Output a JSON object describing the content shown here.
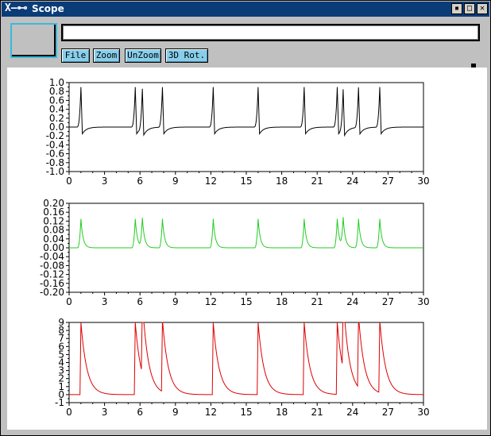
{
  "window": {
    "title": "Scope",
    "logo": "X"
  },
  "toolbar": {
    "file_label": "File",
    "zoom_label": "Zoom",
    "unzoom_label": "UnZoom",
    "rot3d_label": "3D Rot.",
    "text_value": ""
  },
  "chart_data": [
    {
      "type": "line",
      "color": "#000000",
      "xlim": [
        0,
        30
      ],
      "ylim": [
        -1.0,
        1.0
      ],
      "xticks": [
        0,
        3,
        6,
        9,
        12,
        15,
        18,
        21,
        24,
        27,
        30
      ],
      "yticks": [
        "1.0",
        "0.8",
        "0.6",
        "0.4",
        "0.2",
        "0.0",
        "-0.2",
        "-0.4",
        "-0.6",
        "-0.8",
        "-1.0"
      ],
      "spikes": [
        1.0,
        5.6,
        6.2,
        7.9,
        12.2,
        16.0,
        19.9,
        22.7,
        23.2,
        24.5,
        26.3
      ],
      "shape": "biphasic",
      "baseline": 0,
      "peak": 0.9,
      "trough": -0.15
    },
    {
      "type": "line",
      "color": "#22cc22",
      "xlim": [
        0,
        30
      ],
      "ylim": [
        -0.2,
        0.2
      ],
      "xticks": [
        0,
        3,
        6,
        9,
        12,
        15,
        18,
        21,
        24,
        27,
        30
      ],
      "yticks": [
        "0.20",
        "0.16",
        "0.12",
        "0.08",
        "0.04",
        "0.00",
        "-0.04",
        "-0.08",
        "-0.12",
        "-0.16",
        "-0.20"
      ],
      "spikes": [
        1.0,
        5.6,
        6.2,
        7.9,
        12.2,
        16.0,
        19.9,
        22.7,
        23.2,
        24.5,
        26.3
      ],
      "shape": "pulse",
      "baseline": 0,
      "peak": 0.13
    },
    {
      "type": "line",
      "color": "#dd0000",
      "xlim": [
        0,
        30
      ],
      "ylim": [
        -1,
        9
      ],
      "xticks": [
        0,
        3,
        6,
        9,
        12,
        15,
        18,
        21,
        24,
        27,
        30
      ],
      "yticks": [
        "9",
        "8",
        "7",
        "6",
        "5",
        "4",
        "3",
        "2",
        "1",
        "0",
        "-1"
      ],
      "spikes": [
        1.0,
        5.6,
        6.2,
        7.9,
        12.2,
        16.0,
        19.9,
        22.7,
        23.2,
        24.5,
        26.3
      ],
      "shape": "decay",
      "baseline": 0,
      "peak": 9
    }
  ]
}
